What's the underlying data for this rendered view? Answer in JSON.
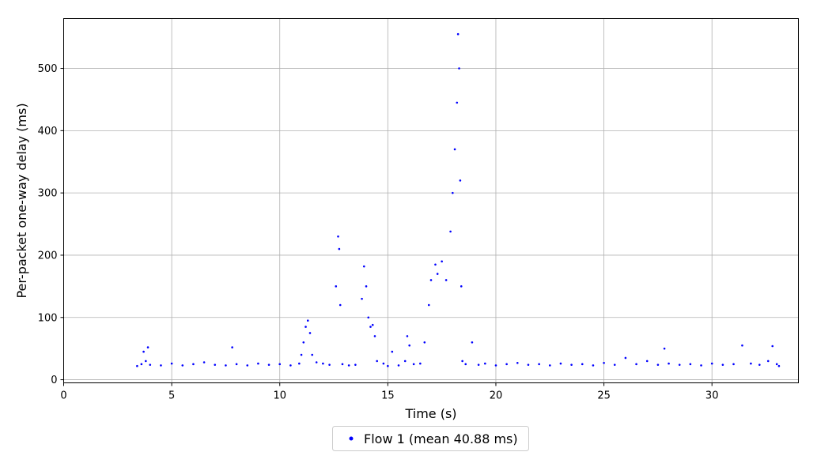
{
  "chart_data": {
    "type": "scatter",
    "xlabel": "Time (s)",
    "ylabel": "Per-packet one-way delay (ms)",
    "xlim": [
      0,
      34
    ],
    "ylim": [
      -5,
      580
    ],
    "x_ticks": [
      0,
      5,
      10,
      15,
      20,
      25,
      30
    ],
    "y_ticks": [
      0,
      100,
      200,
      300,
      400,
      500
    ],
    "grid": true,
    "legend_position": "bottom-center",
    "series": [
      {
        "name": "Flow 1 (mean 40.88 ms)",
        "color": "#0000ff",
        "points": [
          [
            3.4,
            22
          ],
          [
            3.6,
            25
          ],
          [
            3.7,
            45
          ],
          [
            3.8,
            30
          ],
          [
            3.9,
            52
          ],
          [
            4.0,
            24
          ],
          [
            4.5,
            23
          ],
          [
            5.0,
            26
          ],
          [
            5.5,
            23
          ],
          [
            6.0,
            25
          ],
          [
            6.5,
            28
          ],
          [
            7.0,
            24
          ],
          [
            7.5,
            23
          ],
          [
            7.8,
            52
          ],
          [
            8.0,
            25
          ],
          [
            8.5,
            23
          ],
          [
            9.0,
            26
          ],
          [
            9.5,
            24
          ],
          [
            10.0,
            25
          ],
          [
            10.5,
            23
          ],
          [
            10.9,
            26
          ],
          [
            11.0,
            40
          ],
          [
            11.1,
            60
          ],
          [
            11.2,
            85
          ],
          [
            11.3,
            95
          ],
          [
            11.4,
            75
          ],
          [
            11.5,
            40
          ],
          [
            11.7,
            28
          ],
          [
            12.0,
            26
          ],
          [
            12.3,
            24
          ],
          [
            12.6,
            150
          ],
          [
            12.7,
            230
          ],
          [
            12.75,
            210
          ],
          [
            12.8,
            120
          ],
          [
            12.9,
            25
          ],
          [
            13.2,
            23
          ],
          [
            13.5,
            24
          ],
          [
            13.8,
            130
          ],
          [
            13.9,
            182
          ],
          [
            14.0,
            150
          ],
          [
            14.1,
            100
          ],
          [
            14.2,
            85
          ],
          [
            14.3,
            88
          ],
          [
            14.4,
            70
          ],
          [
            14.5,
            30
          ],
          [
            14.8,
            26
          ],
          [
            15.0,
            22
          ],
          [
            15.2,
            45
          ],
          [
            15.5,
            23
          ],
          [
            15.8,
            30
          ],
          [
            15.9,
            70
          ],
          [
            16.0,
            55
          ],
          [
            16.2,
            25
          ],
          [
            16.5,
            26
          ],
          [
            16.7,
            60
          ],
          [
            16.9,
            120
          ],
          [
            17.0,
            160
          ],
          [
            17.2,
            185
          ],
          [
            17.3,
            170
          ],
          [
            17.5,
            190
          ],
          [
            17.7,
            160
          ],
          [
            17.9,
            238
          ],
          [
            18.0,
            300
          ],
          [
            18.1,
            370
          ],
          [
            18.2,
            445
          ],
          [
            18.25,
            555
          ],
          [
            18.3,
            500
          ],
          [
            18.35,
            320
          ],
          [
            18.4,
            150
          ],
          [
            18.45,
            30
          ],
          [
            18.6,
            25
          ],
          [
            18.9,
            60
          ],
          [
            19.2,
            24
          ],
          [
            19.5,
            26
          ],
          [
            20.0,
            23
          ],
          [
            20.5,
            25
          ],
          [
            21.0,
            27
          ],
          [
            21.5,
            24
          ],
          [
            22.0,
            25
          ],
          [
            22.5,
            23
          ],
          [
            23.0,
            26
          ],
          [
            23.5,
            24
          ],
          [
            24.0,
            25
          ],
          [
            24.5,
            23
          ],
          [
            25.0,
            27
          ],
          [
            25.5,
            24
          ],
          [
            26.0,
            35
          ],
          [
            26.5,
            25
          ],
          [
            27.0,
            30
          ],
          [
            27.5,
            24
          ],
          [
            27.8,
            50
          ],
          [
            28.0,
            26
          ],
          [
            28.5,
            24
          ],
          [
            29.0,
            25
          ],
          [
            29.5,
            23
          ],
          [
            30.0,
            26
          ],
          [
            30.5,
            24
          ],
          [
            31.0,
            25
          ],
          [
            31.4,
            55
          ],
          [
            31.8,
            26
          ],
          [
            32.2,
            24
          ],
          [
            32.6,
            30
          ],
          [
            32.8,
            54
          ],
          [
            33.0,
            25
          ],
          [
            33.1,
            22
          ]
        ]
      }
    ]
  }
}
